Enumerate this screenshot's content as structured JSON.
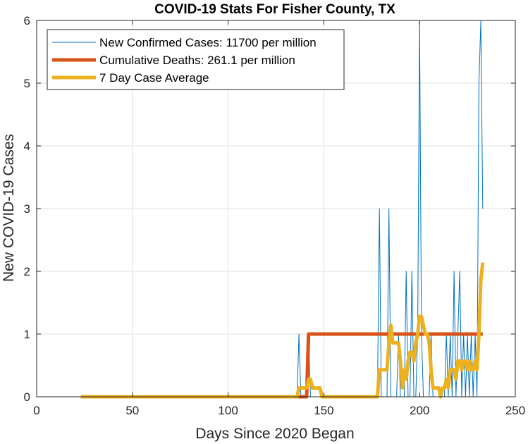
{
  "chart_data": {
    "type": "line",
    "title": "COVID-19 Stats For Fisher County, TX",
    "xlabel": "Days Since 2020 Began",
    "ylabel": "New COVID-19 Cases",
    "xlim": [
      0,
      250
    ],
    "ylim": [
      0,
      6
    ],
    "xticks": [
      "0",
      "50",
      "100",
      "150",
      "200",
      "250"
    ],
    "yticks": [
      "0",
      "1",
      "2",
      "3",
      "4",
      "5",
      "6"
    ],
    "grid": true,
    "legend_position": "top-left",
    "series": [
      {
        "name": "New Confirmed Cases: 11700 per million",
        "color": "#0072BD",
        "points": [
          [
            23,
            0
          ],
          [
            136,
            0
          ],
          [
            137,
            1
          ],
          [
            138,
            0
          ],
          [
            141,
            0
          ],
          [
            142,
            1
          ],
          [
            143,
            0
          ],
          [
            178,
            0
          ],
          [
            179,
            3
          ],
          [
            180,
            0
          ],
          [
            183,
            0
          ],
          [
            184,
            3
          ],
          [
            185,
            0
          ],
          [
            188,
            0
          ],
          [
            189,
            1
          ],
          [
            190,
            0
          ],
          [
            192,
            0
          ],
          [
            193,
            2
          ],
          [
            194,
            0
          ],
          [
            195,
            0
          ],
          [
            196,
            2
          ],
          [
            197,
            0
          ],
          [
            198,
            0
          ],
          [
            199,
            1
          ],
          [
            200,
            6
          ],
          [
            201,
            1
          ],
          [
            202,
            0
          ],
          [
            205,
            0
          ],
          [
            206,
            1
          ],
          [
            207,
            0
          ],
          [
            213,
            0
          ],
          [
            214,
            1
          ],
          [
            215,
            0
          ],
          [
            216,
            1
          ],
          [
            217,
            0
          ],
          [
            218,
            2
          ],
          [
            219,
            0
          ],
          [
            220,
            1
          ],
          [
            221,
            2
          ],
          [
            222,
            0
          ],
          [
            223,
            1
          ],
          [
            224,
            0
          ],
          [
            225,
            1
          ],
          [
            226,
            0
          ],
          [
            227,
            1
          ],
          [
            228,
            0
          ],
          [
            229,
            1
          ],
          [
            230,
            0
          ],
          [
            231,
            5
          ],
          [
            232,
            6
          ],
          [
            233,
            3
          ]
        ]
      },
      {
        "name": "Cumulative Deaths: 261.1 per million",
        "color": "#D95319",
        "points": [
          [
            23,
            0
          ],
          [
            141,
            0
          ],
          [
            142,
            1
          ],
          [
            233,
            1
          ]
        ]
      },
      {
        "name": "7 Day Case Average",
        "color": "#EDB120",
        "points": [
          [
            23,
            0
          ],
          [
            136,
            0
          ],
          [
            137,
            0.14
          ],
          [
            141,
            0.14
          ],
          [
            142,
            0.28
          ],
          [
            143,
            0.28
          ],
          [
            144,
            0.14
          ],
          [
            148,
            0.14
          ],
          [
            149,
            0
          ],
          [
            178,
            0
          ],
          [
            179,
            0.43
          ],
          [
            183,
            0.43
          ],
          [
            184,
            0.86
          ],
          [
            185,
            1.14
          ],
          [
            186,
            0.86
          ],
          [
            189,
            0.86
          ],
          [
            190,
            0.57
          ],
          [
            191,
            0.14
          ],
          [
            192,
            0.43
          ],
          [
            193,
            0.28
          ],
          [
            194,
            0.57
          ],
          [
            195,
            0.71
          ],
          [
            196,
            0.71
          ],
          [
            197,
            0.57
          ],
          [
            198,
            0.86
          ],
          [
            199,
            1.0
          ],
          [
            200,
            1.28
          ],
          [
            201,
            1.28
          ],
          [
            202,
            1.14
          ],
          [
            203,
            1.0
          ],
          [
            204,
            1.0
          ],
          [
            205,
            0.86
          ],
          [
            206,
            0.43
          ],
          [
            207,
            0.14
          ],
          [
            210,
            0.14
          ],
          [
            211,
            0
          ],
          [
            212,
            0.14
          ],
          [
            213,
            0.14
          ],
          [
            214,
            0.28
          ],
          [
            215,
            0.14
          ],
          [
            216,
            0.43
          ],
          [
            218,
            0.43
          ],
          [
            219,
            0.28
          ],
          [
            220,
            0.57
          ],
          [
            221,
            0.57
          ],
          [
            222,
            0.43
          ],
          [
            223,
            0.57
          ],
          [
            224,
            0.57
          ],
          [
            225,
            0.43
          ],
          [
            226,
            0.57
          ],
          [
            227,
            0.43
          ],
          [
            228,
            0.43
          ],
          [
            229,
            0.57
          ],
          [
            230,
            0.43
          ],
          [
            231,
            1.0
          ],
          [
            232,
            1.86
          ],
          [
            233,
            2.14
          ]
        ]
      }
    ]
  }
}
